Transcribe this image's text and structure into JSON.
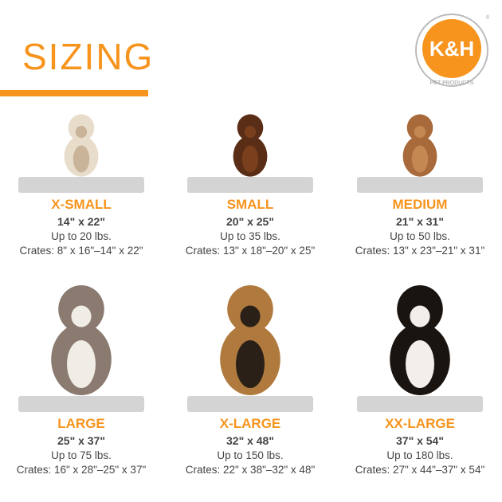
{
  "title": "SIZING",
  "logo": {
    "text": "K&H",
    "subtext": "PET PRODUCTS",
    "registered": "®"
  },
  "colors": {
    "accent": "#f7941d",
    "pad": "#d4d4d4",
    "text": "#444444"
  },
  "sizes": [
    {
      "name": "X-SMALL",
      "dims": "14\" x 22\"",
      "weight": "Up to 20 lbs.",
      "crates": "Crates: 8\" x 16\"–14\" x 22\""
    },
    {
      "name": "SMALL",
      "dims": "20\" x 25\"",
      "weight": "Up to 35 lbs.",
      "crates": "Crates: 13\" x 18\"–20\" x 25\""
    },
    {
      "name": "MEDIUM",
      "dims": "21\" x 31\"",
      "weight": "Up to 50 lbs.",
      "crates": "Crates: 13\" x 23\"–21\" x 31\""
    },
    {
      "name": "LARGE",
      "dims": "25\" x 37\"",
      "weight": "Up to 75 lbs.",
      "crates": "Crates: 16\" x 28\"–25\" x 37\""
    },
    {
      "name": "X-LARGE",
      "dims": "32\" x 48\"",
      "weight": "Up to 150 lbs.",
      "crates": "Crates: 22\" x 38\"–32\" x 48\""
    },
    {
      "name": "XX-LARGE",
      "dims": "37\" x 54\"",
      "weight": "Up to 180 lbs.",
      "crates": "Crates: 27\" x 44\"–37\" x 54\""
    }
  ]
}
